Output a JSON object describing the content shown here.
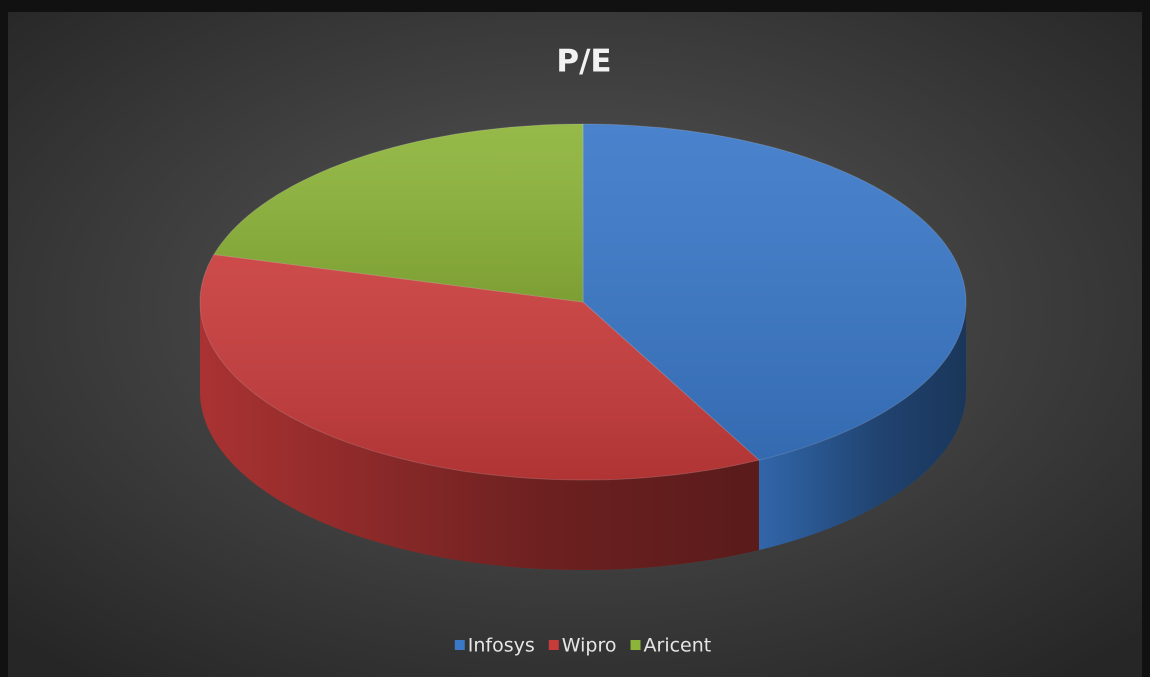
{
  "chart_data": {
    "type": "pie",
    "title": "P/E",
    "categories": [
      "Infosys",
      "Wipro",
      "Aricent"
    ],
    "values": [
      42.4,
      36.9,
      20.7
    ],
    "colors": [
      "#3a78c8",
      "#c83b3b",
      "#8db43a"
    ],
    "legend": "bottom"
  }
}
